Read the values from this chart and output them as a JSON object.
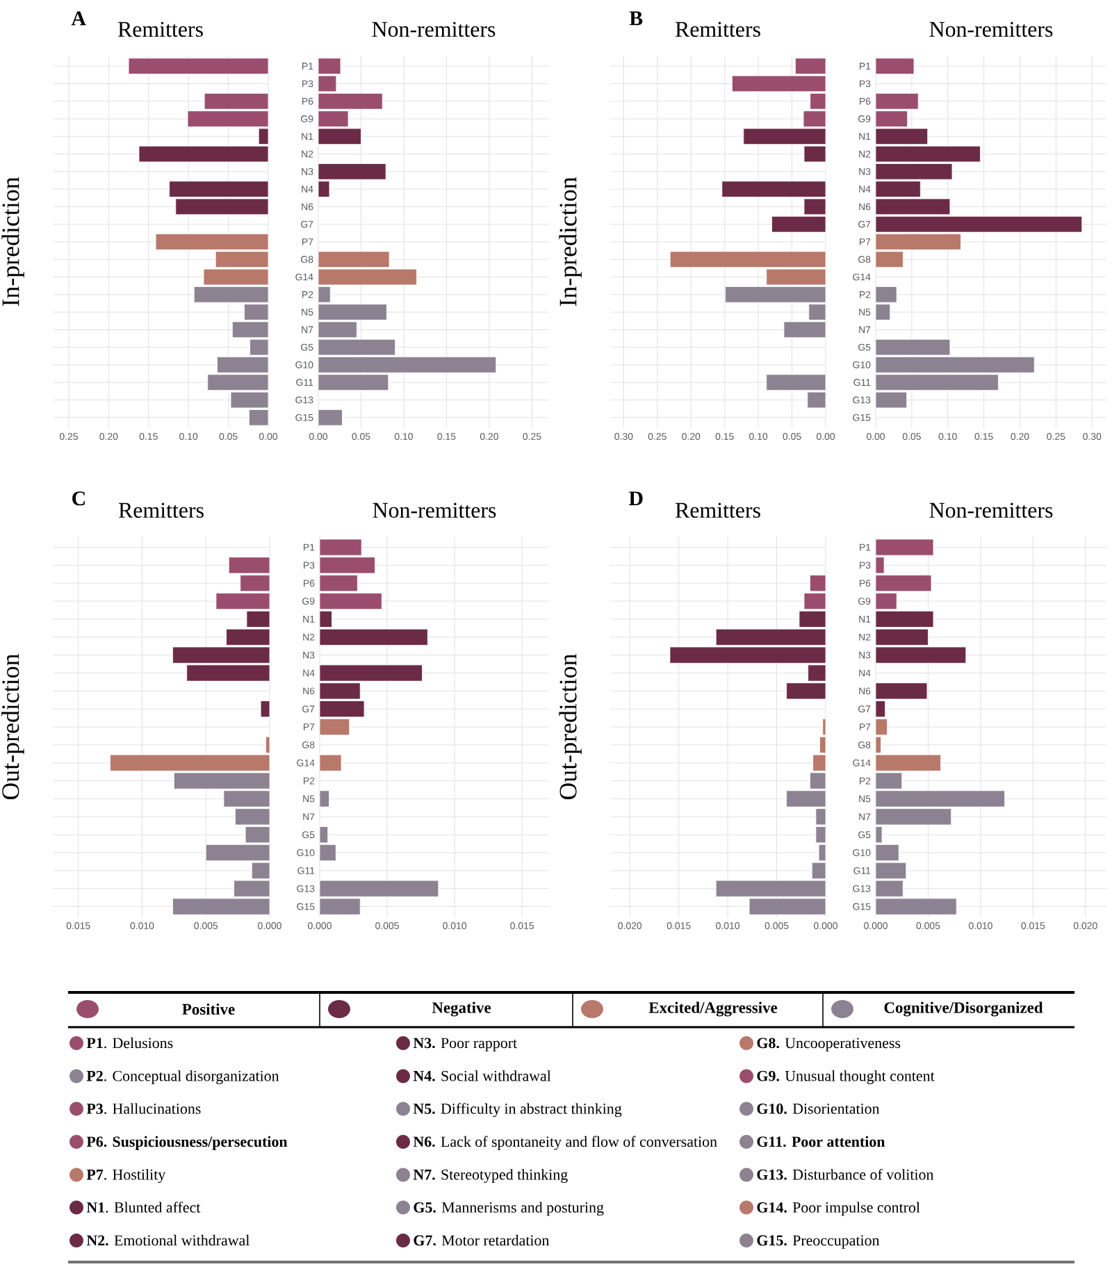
{
  "chart_data": [
    {
      "type": "bar",
      "orientation": "horizontal",
      "title": "Remitters",
      "ylabel": "In-prediction",
      "annotations": [
        "A"
      ],
      "categories": [
        null,
        null,
        null,
        null,
        null,
        null,
        null,
        null,
        null,
        null,
        null,
        null,
        null,
        null,
        null,
        null,
        null,
        null,
        null,
        null,
        null
      ],
      "values": [
        0.175,
        null,
        0.08,
        0.101,
        0.012,
        0.162,
        null,
        0.124,
        0.116,
        null,
        0.141,
        0.066,
        0.081,
        0.093,
        0.03,
        0.045,
        0.023,
        0.064,
        0.076,
        0.047,
        0.024
      ],
      "colors": [
        "#9b4d6e",
        "#9b4d6e",
        "#9b4d6e",
        "#9b4d6e",
        "#6b2a45",
        "#6b2a45",
        "#6b2a45",
        "#6b2a45",
        "#6b2a45",
        "#6b2a45",
        "#b8786a",
        "#b8786a",
        "#b8786a",
        "#8c8292",
        "#8c8292",
        "#8c8292",
        "#8c8292",
        "#8c8292",
        "#8c8292",
        "#8c8292",
        "#8c8292"
      ],
      "xlim": [
        0.27,
        0
      ],
      "xticks": [
        {
          "value": 0,
          "label": "0.00"
        },
        0.05,
        {
          "value": 0.1,
          "label": "0.10"
        },
        0.15,
        {
          "value": 0.2,
          "label": "0.20"
        },
        0.25
      ],
      "grid": true
    },
    {
      "type": "bar",
      "orientation": "horizontal",
      "title": "Non-remitters",
      "categories": [
        "P1",
        "P3",
        "P6",
        "G9",
        "N1",
        "N2",
        "N3",
        "N4",
        "N6",
        "G7",
        "P7",
        "G8",
        "G14",
        "P2",
        "N5",
        "N7",
        "G5",
        "G10",
        "G11",
        "G13",
        "G15"
      ],
      "values": [
        0.026,
        0.021,
        0.075,
        0.035,
        0.05,
        null,
        0.079,
        0.013,
        null,
        null,
        null,
        0.083,
        0.115,
        0.014,
        0.08,
        0.045,
        0.09,
        0.208,
        0.082,
        null,
        0.028
      ],
      "colors": [
        "#9b4d6e",
        "#9b4d6e",
        "#9b4d6e",
        "#9b4d6e",
        "#6b2a45",
        "#6b2a45",
        "#6b2a45",
        "#6b2a45",
        "#6b2a45",
        "#6b2a45",
        "#b8786a",
        "#b8786a",
        "#b8786a",
        "#8c8292",
        "#8c8292",
        "#8c8292",
        "#8c8292",
        "#8c8292",
        "#8c8292",
        "#8c8292",
        "#8c8292"
      ],
      "xlim": [
        0,
        0.27
      ],
      "xticks": [
        {
          "value": 0,
          "label": "0.00"
        },
        0.05,
        {
          "value": 0.1,
          "label": "0.10"
        },
        0.15,
        {
          "value": 0.2,
          "label": "0.20"
        },
        0.25
      ],
      "grid": true
    },
    {
      "type": "bar",
      "orientation": "horizontal",
      "title": "Remitters",
      "ylabel": "In-prediction",
      "annotations": [
        "B"
      ],
      "categories": [
        null,
        null,
        null,
        null,
        null,
        null,
        null,
        null,
        null,
        null,
        null,
        null,
        null,
        null,
        null,
        null,
        null,
        null,
        null,
        null,
        null
      ],
      "values": [
        0.045,
        0.139,
        0.023,
        0.033,
        0.122,
        0.032,
        null,
        0.154,
        0.032,
        0.08,
        null,
        0.231,
        0.088,
        0.149,
        0.025,
        0.062,
        null,
        null,
        0.088,
        0.027,
        null
      ],
      "colors": [
        "#9b4d6e",
        "#9b4d6e",
        "#9b4d6e",
        "#9b4d6e",
        "#6b2a45",
        "#6b2a45",
        "#6b2a45",
        "#6b2a45",
        "#6b2a45",
        "#6b2a45",
        "#b8786a",
        "#b8786a",
        "#b8786a",
        "#8c8292",
        "#8c8292",
        "#8c8292",
        "#8c8292",
        "#8c8292",
        "#8c8292",
        "#8c8292",
        "#8c8292"
      ],
      "xlim": [
        0.32,
        0
      ],
      "xticks": [
        {
          "value": 0,
          "label": "0.00"
        },
        0.05,
        {
          "value": 0.1,
          "label": "0.10"
        },
        0.15,
        {
          "value": 0.2,
          "label": "0.20"
        },
        0.25,
        {
          "value": 0.3,
          "label": "0.30"
        }
      ],
      "grid": true
    },
    {
      "type": "bar",
      "orientation": "horizontal",
      "title": "Non-remitters",
      "categories": [
        "P1",
        "P3",
        "P6",
        "G9",
        "N1",
        "N2",
        "N3",
        "N4",
        "N6",
        "G7",
        "P7",
        "G8",
        "G14",
        "P2",
        "N5",
        "N7",
        "G5",
        "G10",
        "G11",
        "G13",
        "G15"
      ],
      "values": [
        0.053,
        null,
        0.059,
        0.044,
        0.072,
        0.145,
        0.106,
        0.062,
        0.103,
        0.286,
        0.118,
        0.038,
        null,
        0.029,
        0.02,
        null,
        0.103,
        0.22,
        0.17,
        0.043,
        null
      ],
      "colors": [
        "#9b4d6e",
        "#9b4d6e",
        "#9b4d6e",
        "#9b4d6e",
        "#6b2a45",
        "#6b2a45",
        "#6b2a45",
        "#6b2a45",
        "#6b2a45",
        "#6b2a45",
        "#b8786a",
        "#b8786a",
        "#b8786a",
        "#8c8292",
        "#8c8292",
        "#8c8292",
        "#8c8292",
        "#8c8292",
        "#8c8292",
        "#8c8292",
        "#8c8292"
      ],
      "xlim": [
        0,
        0.32
      ],
      "xticks": [
        {
          "value": 0,
          "label": "0.00"
        },
        0.05,
        {
          "value": 0.1,
          "label": "0.10"
        },
        0.15,
        {
          "value": 0.2,
          "label": "0.20"
        },
        0.25,
        {
          "value": 0.3,
          "label": "0.30"
        }
      ],
      "grid": true
    },
    {
      "type": "bar",
      "orientation": "horizontal",
      "title": "Remitters",
      "ylabel": "Out-prediction",
      "annotations": [
        "C"
      ],
      "categories": [
        null,
        null,
        null,
        null,
        null,
        null,
        null,
        null,
        null,
        null,
        null,
        null,
        null,
        null,
        null,
        null,
        null,
        null,
        null,
        null,
        null
      ],
      "values": [
        null,
        0.0032,
        0.0023,
        0.0042,
        0.0018,
        0.0034,
        0.0076,
        0.0065,
        null,
        0.0007,
        null,
        0.0003,
        0.0125,
        0.0075,
        0.0036,
        0.0027,
        0.0019,
        0.005,
        0.0014,
        0.0028,
        0.0076
      ],
      "colors": [
        "#9b4d6e",
        "#9b4d6e",
        "#9b4d6e",
        "#9b4d6e",
        "#6b2a45",
        "#6b2a45",
        "#6b2a45",
        "#6b2a45",
        "#6b2a45",
        "#6b2a45",
        "#b8786a",
        "#b8786a",
        "#b8786a",
        "#8c8292",
        "#8c8292",
        "#8c8292",
        "#8c8292",
        "#8c8292",
        "#8c8292",
        "#8c8292",
        "#8c8292"
      ],
      "xlim": [
        0.017,
        0
      ],
      "xticks": [
        {
          "value": 0,
          "label": "0.000"
        },
        0.005,
        {
          "value": 0.01,
          "label": "0.010"
        },
        0.015
      ],
      "grid": true
    },
    {
      "type": "bar",
      "orientation": "horizontal",
      "title": "Non-remitters",
      "categories": [
        "P1",
        "P3",
        "P6",
        "G9",
        "N1",
        "N2",
        "N3",
        "N4",
        "N6",
        "G7",
        "P7",
        "G8",
        "G14",
        "P2",
        "N5",
        "N7",
        "G5",
        "G10",
        "G11",
        "G13",
        "G15"
      ],
      "values": [
        0.0031,
        0.0041,
        0.0028,
        0.0046,
        0.0009,
        0.008,
        null,
        0.0076,
        0.003,
        0.0033,
        0.0022,
        null,
        0.0016,
        null,
        0.0007,
        null,
        0.0006,
        0.0012,
        null,
        0.0088,
        0.003
      ],
      "colors": [
        "#9b4d6e",
        "#9b4d6e",
        "#9b4d6e",
        "#9b4d6e",
        "#6b2a45",
        "#6b2a45",
        "#6b2a45",
        "#6b2a45",
        "#6b2a45",
        "#6b2a45",
        "#b8786a",
        "#b8786a",
        "#b8786a",
        "#8c8292",
        "#8c8292",
        "#8c8292",
        "#8c8292",
        "#8c8292",
        "#8c8292",
        "#8c8292",
        "#8c8292"
      ],
      "xlim": [
        0,
        0.017
      ],
      "xticks": [
        {
          "value": 0,
          "label": "0.000"
        },
        0.005,
        {
          "value": 0.01,
          "label": "0.010"
        },
        0.015
      ],
      "grid": true
    },
    {
      "type": "bar",
      "orientation": "horizontal",
      "title": "Remitters",
      "ylabel": "Out-prediction",
      "annotations": [
        "D"
      ],
      "categories": [
        null,
        null,
        null,
        null,
        null,
        null,
        null,
        null,
        null,
        null,
        null,
        null,
        null,
        null,
        null,
        null,
        null,
        null,
        null,
        null,
        null
      ],
      "values": [
        null,
        null,
        0.0016,
        0.0022,
        0.0027,
        0.0112,
        0.0159,
        0.0018,
        0.004,
        null,
        0.0003,
        0.0006,
        0.0013,
        0.0016,
        0.004,
        0.001,
        0.001,
        0.0007,
        0.0014,
        0.0112,
        0.0078
      ],
      "colors": [
        "#9b4d6e",
        "#9b4d6e",
        "#9b4d6e",
        "#9b4d6e",
        "#6b2a45",
        "#6b2a45",
        "#6b2a45",
        "#6b2a45",
        "#6b2a45",
        "#6b2a45",
        "#b8786a",
        "#b8786a",
        "#b8786a",
        "#8c8292",
        "#8c8292",
        "#8c8292",
        "#8c8292",
        "#8c8292",
        "#8c8292",
        "#8c8292",
        "#8c8292"
      ],
      "xlim": [
        0.022,
        0
      ],
      "xticks": [
        {
          "value": 0,
          "label": "0.000"
        },
        0.005,
        {
          "value": 0.01,
          "label": "0.010"
        },
        0.015,
        {
          "value": 0.02,
          "label": "0.020"
        }
      ],
      "grid": true
    },
    {
      "type": "bar",
      "orientation": "horizontal",
      "title": "Non-remitters",
      "categories": [
        "P1",
        "P3",
        "P6",
        "G9",
        "N1",
        "N2",
        "N3",
        "N4",
        "N6",
        "G7",
        "P7",
        "G8",
        "G14",
        "P2",
        "N5",
        "N7",
        "G5",
        "G10",
        "G11",
        "G13",
        "G15"
      ],
      "values": [
        0.0055,
        0.0008,
        0.0053,
        0.002,
        0.0055,
        0.005,
        0.0086,
        null,
        0.0049,
        0.0009,
        0.0011,
        0.0005,
        0.0062,
        0.0025,
        0.0123,
        0.0072,
        0.0006,
        0.0022,
        0.0029,
        0.0026,
        0.0077
      ],
      "colors": [
        "#9b4d6e",
        "#9b4d6e",
        "#9b4d6e",
        "#9b4d6e",
        "#6b2a45",
        "#6b2a45",
        "#6b2a45",
        "#6b2a45",
        "#6b2a45",
        "#6b2a45",
        "#b8786a",
        "#b8786a",
        "#b8786a",
        "#8c8292",
        "#8c8292",
        "#8c8292",
        "#8c8292",
        "#8c8292",
        "#8c8292",
        "#8c8292",
        "#8c8292"
      ],
      "xlim": [
        0,
        0.022
      ],
      "xticks": [
        {
          "value": 0,
          "label": "0.000"
        },
        0.005,
        {
          "value": 0.01,
          "label": "0.010"
        },
        0.015,
        {
          "value": 0.02,
          "label": "0.020"
        }
      ],
      "grid": true
    },
    {
      "type": "other",
      "categories": [
        "Positive",
        "Negative",
        "Excited/Aggressive",
        "Cognitive/Disorganized"
      ],
      "colors": [
        "#9b4d6e",
        "#6b2a45",
        "#b8786a",
        "#8c8292",
        "#9b4d6e",
        "#8c8292",
        "#9b4d6e",
        "#9b4d6e",
        "#b8786a",
        "#6b2a45",
        "#6b2a45",
        "#6b2a45",
        "#6b2a45",
        "#8c8292",
        "#6b2a45",
        "#8c8292",
        "#8c8292",
        "#6b2a45",
        "#b8786a",
        "#9b4d6e",
        "#8c8292",
        "#8c8292",
        "#8c8292",
        "#b8786a",
        "#8c8292"
      ],
      "annotations": [
        "**P1**. Delusions",
        "**P2**. Conceptual disorganization",
        "**P3**. Hallucinations",
        "**P6. Suspiciousness/persecution**",
        "**P7**. Hostility",
        "**N1**. Blunted affect",
        "**N2.** Emotional withdrawal",
        "**N3.** Poor rapport",
        "**N4.** Social withdrawal",
        "**N5.** Difficulty in abstract thinking",
        "**N6.** Lack of spontaneity and flow of conversation",
        "**N7.** Stereotyped thinking",
        "**G5.** Mannerisms and posturing",
        "**G7.** Motor retardation",
        "**G8.** Uncooperativeness",
        "**G9.** Unusual thought content",
        "**G10.** Disorientation",
        "**G11. Poor attention**",
        "**G13.** Disturbance of volition",
        "**G14.** Poor impulse control",
        "**G15.** Preoccupation"
      ]
    }
  ]
}
